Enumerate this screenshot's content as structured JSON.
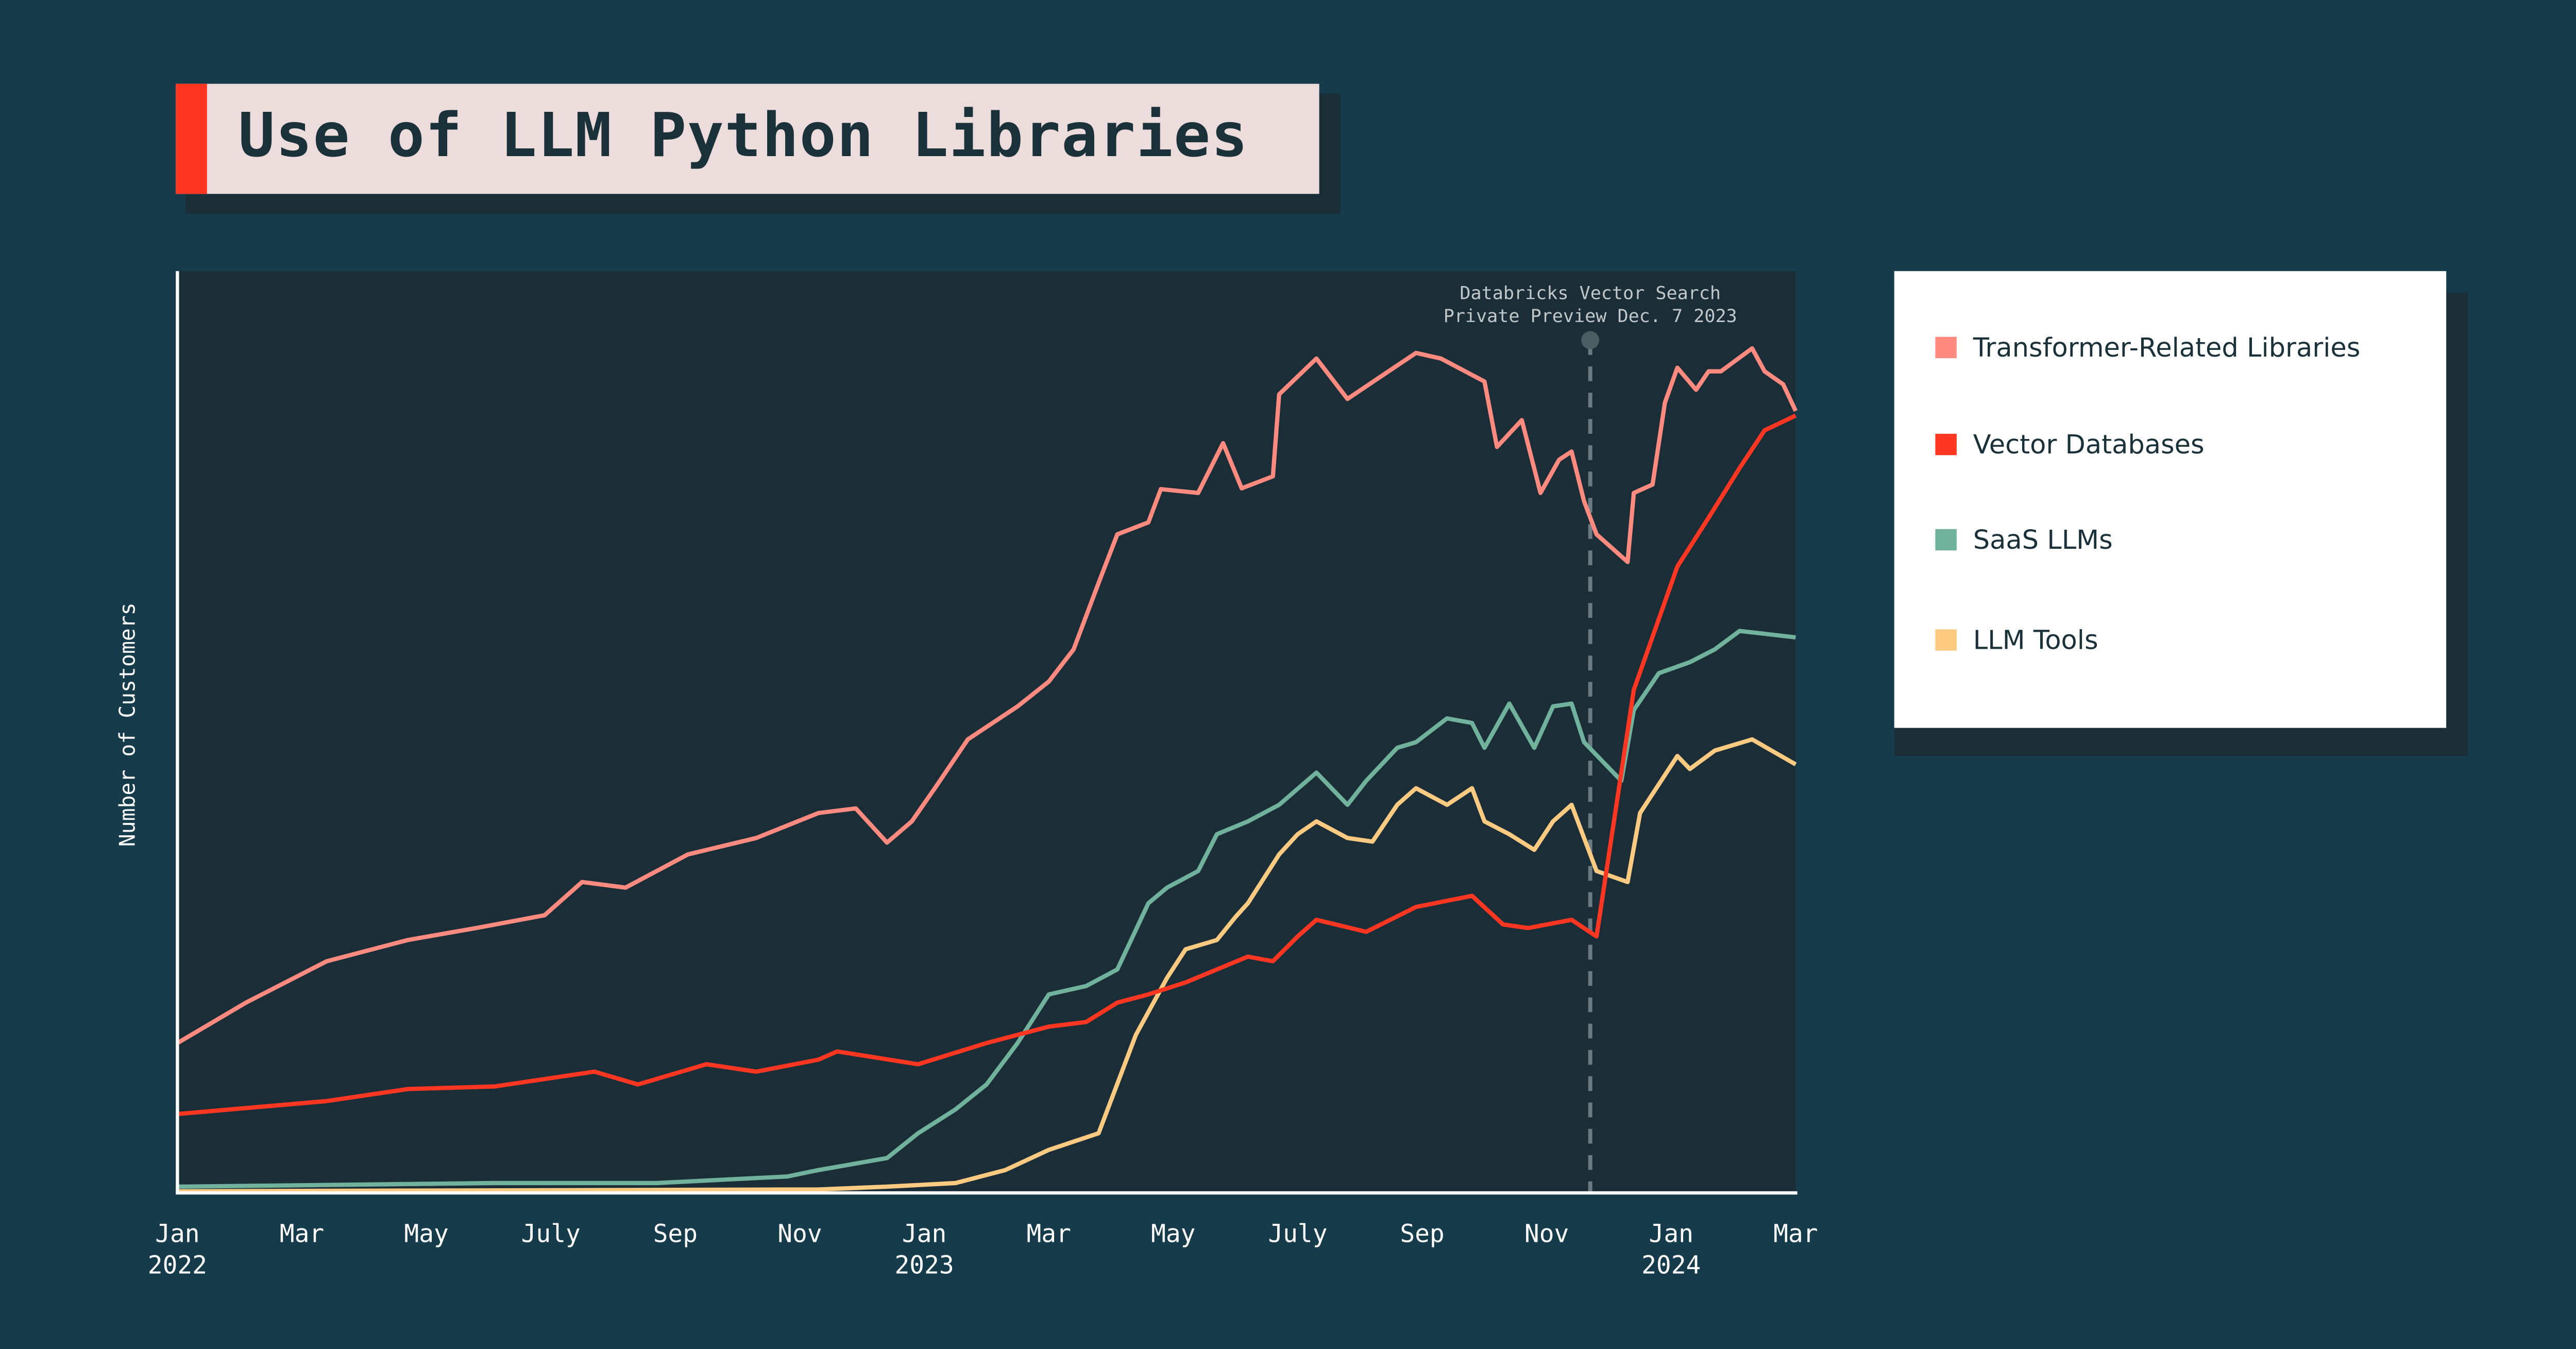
{
  "chart_data": {
    "type": "line",
    "title": "Use of LLM Python Libraries",
    "xlabel": "",
    "ylabel": "Number of Customers",
    "x_unit": "months since Jan 2022",
    "xlim": [
      0,
      26
    ],
    "ylim": [
      0,
      100
    ],
    "grid": false,
    "legend_position": "right",
    "x_ticks": [
      {
        "x": 0,
        "label": "Jan",
        "sub": "2022"
      },
      {
        "x": 2,
        "label": "Mar",
        "sub": ""
      },
      {
        "x": 4,
        "label": "May",
        "sub": ""
      },
      {
        "x": 6,
        "label": "July",
        "sub": ""
      },
      {
        "x": 8,
        "label": "Sep",
        "sub": ""
      },
      {
        "x": 10,
        "label": "Nov",
        "sub": ""
      },
      {
        "x": 12,
        "label": "Jan",
        "sub": "2023"
      },
      {
        "x": 14,
        "label": "Mar",
        "sub": ""
      },
      {
        "x": 16,
        "label": "May",
        "sub": ""
      },
      {
        "x": 18,
        "label": "July",
        "sub": ""
      },
      {
        "x": 20,
        "label": "Sep",
        "sub": ""
      },
      {
        "x": 22,
        "label": "Nov",
        "sub": ""
      },
      {
        "x": 24,
        "label": "Jan",
        "sub": "2024"
      },
      {
        "x": 26,
        "label": "Mar",
        "sub": ""
      }
    ],
    "annotation": {
      "x": 22.7,
      "line1": "Databricks Vector Search",
      "line2": "Private Preview Dec. 7 2023"
    },
    "series": [
      {
        "name": "Transformer-Related Libraries",
        "color": "#ff8a80",
        "x": [
          0,
          1.1,
          2.4,
          3.7,
          4.8,
          5.9,
          6.5,
          7.2,
          8.2,
          9.3,
          10.3,
          10.9,
          11.4,
          11.8,
          12.2,
          12.7,
          13.5,
          14.0,
          14.4,
          14.8,
          15.1,
          15.6,
          15.8,
          16.4,
          16.8,
          17.1,
          17.6,
          17.7,
          18.3,
          18.8,
          19.3,
          19.9,
          20.3,
          21.0,
          21.2,
          21.6,
          21.9,
          22.2,
          22.4,
          22.6,
          22.8,
          23.3,
          23.4,
          23.7,
          23.9,
          24.1,
          24.4,
          24.6,
          24.8,
          25.3,
          25.5,
          25.8,
          26.0
        ],
        "y": [
          16.1,
          20.5,
          25,
          27.3,
          28.6,
          30,
          33.6,
          33,
          36.6,
          38.4,
          41.1,
          41.6,
          37.9,
          40.2,
          44.1,
          49.1,
          52.7,
          55.4,
          58.9,
          66.1,
          71.4,
          72.7,
          76.3,
          75.9,
          81.3,
          76.4,
          77.7,
          86.6,
          90.5,
          86.1,
          88.4,
          91.1,
          90.5,
          88,
          80.9,
          83.8,
          75.9,
          79.5,
          80.4,
          75,
          71.4,
          68.4,
          75.9,
          76.8,
          85.7,
          89.5,
          87.1,
          89.1,
          89.1,
          91.6,
          89.1,
          87.7,
          84.8
        ]
      },
      {
        "name": "Vector Databases",
        "color": "#ff3621",
        "x": [
          0,
          2.4,
          3.7,
          5.1,
          6.7,
          7.4,
          8.5,
          9.3,
          10.3,
          10.6,
          11.9,
          13.0,
          14.0,
          14.6,
          15.1,
          15.6,
          16.2,
          16.7,
          17.2,
          17.6,
          18.0,
          18.3,
          19.1,
          19.9,
          20.2,
          20.8,
          21.3,
          21.7,
          22.4,
          22.8,
          23.4,
          24.1,
          24.6,
          25.1,
          25.5,
          26.0
        ],
        "y": [
          8.4,
          9.8,
          11.1,
          11.4,
          13.0,
          11.6,
          13.8,
          13.0,
          14.3,
          15.2,
          13.8,
          16.1,
          17.9,
          18.4,
          20.5,
          21.4,
          22.7,
          24.1,
          25.5,
          25,
          27.7,
          29.5,
          28.2,
          30.9,
          31.3,
          32.1,
          29.0,
          28.6,
          29.5,
          27.7,
          54.5,
          67.9,
          73.2,
          78.6,
          82.7,
          84.3
        ]
      },
      {
        "name": "SaaS LLMs",
        "color": "#70b29b",
        "x": [
          0,
          5.1,
          7.7,
          9.8,
          10.3,
          11.4,
          11.9,
          12.5,
          13.0,
          13.5,
          14.0,
          14.6,
          15.1,
          15.6,
          15.9,
          16.4,
          16.7,
          17.2,
          17.7,
          18.3,
          18.8,
          19.1,
          19.6,
          19.9,
          20.4,
          20.8,
          21.0,
          21.4,
          21.8,
          22.1,
          22.4,
          22.6,
          23.2,
          23.4,
          23.8,
          24.3,
          24.7,
          25.1,
          26.0
        ],
        "y": [
          0.5,
          0.9,
          0.9,
          1.6,
          2.3,
          3.6,
          6.3,
          8.9,
          11.6,
          16.1,
          21.4,
          22.3,
          24.1,
          31.3,
          33,
          34.8,
          38.8,
          40.2,
          42,
          45.5,
          42,
          44.6,
          48.2,
          48.8,
          51.4,
          50.9,
          48.2,
          53,
          48.2,
          52.7,
          53,
          48.8,
          44.6,
          52.3,
          56.3,
          57.5,
          58.9,
          60.9,
          60.2
        ]
      },
      {
        "name": "LLM Tools",
        "color": "#fcca81",
        "x": [
          0,
          10.3,
          11.4,
          12.5,
          13.3,
          14.0,
          14.8,
          15.4,
          15.9,
          16.2,
          16.7,
          17.0,
          17.2,
          17.7,
          18.0,
          18.3,
          18.8,
          19.2,
          19.6,
          19.9,
          20.4,
          20.8,
          21.0,
          21.4,
          21.8,
          22.1,
          22.4,
          22.8,
          23.3,
          23.5,
          24.1,
          24.3,
          24.7,
          25.3,
          26.0
        ],
        "y": [
          0,
          0.2,
          0.5,
          0.9,
          2.3,
          4.5,
          6.3,
          17,
          23.2,
          26.3,
          27.3,
          29.8,
          31.3,
          36.6,
          38.8,
          40.2,
          38.4,
          38,
          42,
          43.8,
          42,
          43.8,
          40.2,
          38.8,
          37.1,
          40.2,
          42,
          34.8,
          33.6,
          41.1,
          47.3,
          45.9,
          47.9,
          49.1,
          46.4
        ]
      }
    ]
  }
}
